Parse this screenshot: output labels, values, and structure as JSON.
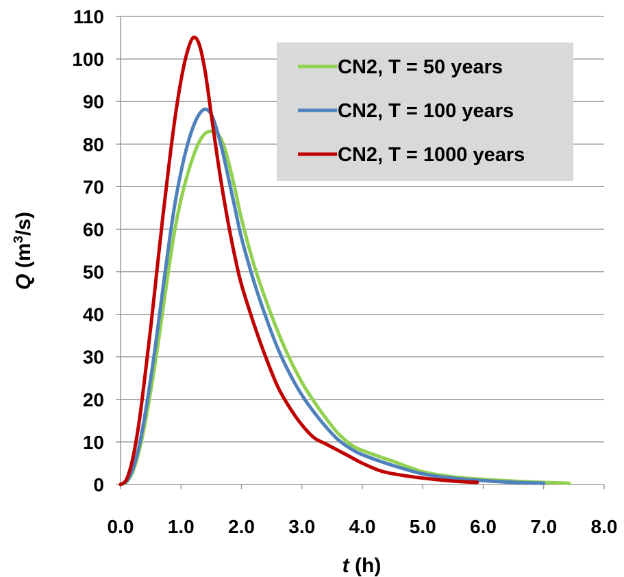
{
  "chart_data": {
    "type": "line",
    "xlabel": {
      "var": "t",
      "unit": " (h)"
    },
    "ylabel": {
      "var": "Q",
      "unit_prefix": " (m",
      "unit_sup": "3",
      "unit_suffix": "/s)"
    },
    "xlim": [
      0,
      8
    ],
    "ylim": [
      0,
      110
    ],
    "x_ticks": [
      "0.0",
      "1.0",
      "2.0",
      "3.0",
      "4.0",
      "5.0",
      "6.0",
      "7.0",
      "8.0"
    ],
    "y_ticks": [
      "0",
      "10",
      "20",
      "30",
      "40",
      "50",
      "60",
      "70",
      "80",
      "90",
      "100",
      "110"
    ],
    "grid": "horizontal",
    "legend_position": "top-right",
    "legend_background": "#d9d9d9",
    "series": [
      {
        "name": "CN2, T = 50 years",
        "color": "#92d050",
        "points": [
          [
            0,
            0
          ],
          [
            0.1,
            0.6
          ],
          [
            0.2,
            3
          ],
          [
            0.3,
            7.5
          ],
          [
            0.4,
            14
          ],
          [
            0.5,
            22
          ],
          [
            0.6,
            31
          ],
          [
            0.7,
            41
          ],
          [
            0.8,
            51
          ],
          [
            0.9,
            60
          ],
          [
            1.0,
            67
          ],
          [
            1.1,
            72.5
          ],
          [
            1.2,
            77
          ],
          [
            1.3,
            80.5
          ],
          [
            1.4,
            82.5
          ],
          [
            1.5,
            83
          ],
          [
            1.6,
            82.5
          ],
          [
            1.7,
            80
          ],
          [
            1.8,
            75
          ],
          [
            1.9,
            69
          ],
          [
            2.0,
            62.5
          ],
          [
            2.2,
            52
          ],
          [
            2.4,
            43.5
          ],
          [
            2.6,
            36
          ],
          [
            2.8,
            29.5
          ],
          [
            3.0,
            24
          ],
          [
            3.2,
            19.5
          ],
          [
            3.4,
            15.5
          ],
          [
            3.6,
            12
          ],
          [
            3.8,
            9.5
          ],
          [
            4.0,
            8
          ],
          [
            4.5,
            5.5
          ],
          [
            5.0,
            3
          ],
          [
            5.5,
            1.8
          ],
          [
            6.0,
            1.2
          ],
          [
            6.5,
            0.8
          ],
          [
            7.0,
            0.5
          ],
          [
            7.42,
            0.3
          ]
        ]
      },
      {
        "name": "CN2, T = 100 years",
        "color": "#4f81bd",
        "points": [
          [
            0,
            0
          ],
          [
            0.1,
            0.8
          ],
          [
            0.2,
            3.5
          ],
          [
            0.3,
            8.5
          ],
          [
            0.4,
            16
          ],
          [
            0.5,
            25
          ],
          [
            0.6,
            35
          ],
          [
            0.7,
            46
          ],
          [
            0.8,
            56.5
          ],
          [
            0.9,
            66
          ],
          [
            1.0,
            73.5
          ],
          [
            1.1,
            79.5
          ],
          [
            1.2,
            84
          ],
          [
            1.3,
            87
          ],
          [
            1.4,
            88.2
          ],
          [
            1.5,
            87
          ],
          [
            1.6,
            83
          ],
          [
            1.7,
            77.5
          ],
          [
            1.8,
            71
          ],
          [
            1.9,
            64.5
          ],
          [
            2.0,
            58
          ],
          [
            2.2,
            48
          ],
          [
            2.4,
            39.5
          ],
          [
            2.6,
            32
          ],
          [
            2.8,
            26
          ],
          [
            3.0,
            21
          ],
          [
            3.2,
            17
          ],
          [
            3.4,
            13.5
          ],
          [
            3.6,
            10.5
          ],
          [
            3.8,
            8.5
          ],
          [
            4.0,
            7
          ],
          [
            4.5,
            4.5
          ],
          [
            5.0,
            2.5
          ],
          [
            5.5,
            1.5
          ],
          [
            6.0,
            0.9
          ],
          [
            6.5,
            0.5
          ],
          [
            7.0,
            0.3
          ]
        ]
      },
      {
        "name": "CN2, T = 1000 years",
        "color": "#c00000",
        "points": [
          [
            0,
            0
          ],
          [
            0.1,
            1.2
          ],
          [
            0.2,
            6
          ],
          [
            0.3,
            14
          ],
          [
            0.4,
            25
          ],
          [
            0.5,
            37
          ],
          [
            0.6,
            50
          ],
          [
            0.7,
            63
          ],
          [
            0.8,
            75
          ],
          [
            0.9,
            86
          ],
          [
            1.0,
            95
          ],
          [
            1.1,
            101.5
          ],
          [
            1.2,
            105
          ],
          [
            1.3,
            103.5
          ],
          [
            1.4,
            97
          ],
          [
            1.5,
            87
          ],
          [
            1.6,
            77
          ],
          [
            1.7,
            68
          ],
          [
            1.8,
            60
          ],
          [
            1.9,
            53
          ],
          [
            2.0,
            47
          ],
          [
            2.2,
            38
          ],
          [
            2.4,
            30
          ],
          [
            2.6,
            23
          ],
          [
            2.8,
            18
          ],
          [
            3.0,
            14
          ],
          [
            3.2,
            11
          ],
          [
            3.4,
            9.5
          ],
          [
            3.6,
            8
          ],
          [
            3.8,
            6.5
          ],
          [
            4.0,
            5
          ],
          [
            4.3,
            3.2
          ],
          [
            4.6,
            2.3
          ],
          [
            5.0,
            1.5
          ],
          [
            5.5,
            0.8
          ],
          [
            5.9,
            0.5
          ]
        ]
      }
    ]
  }
}
